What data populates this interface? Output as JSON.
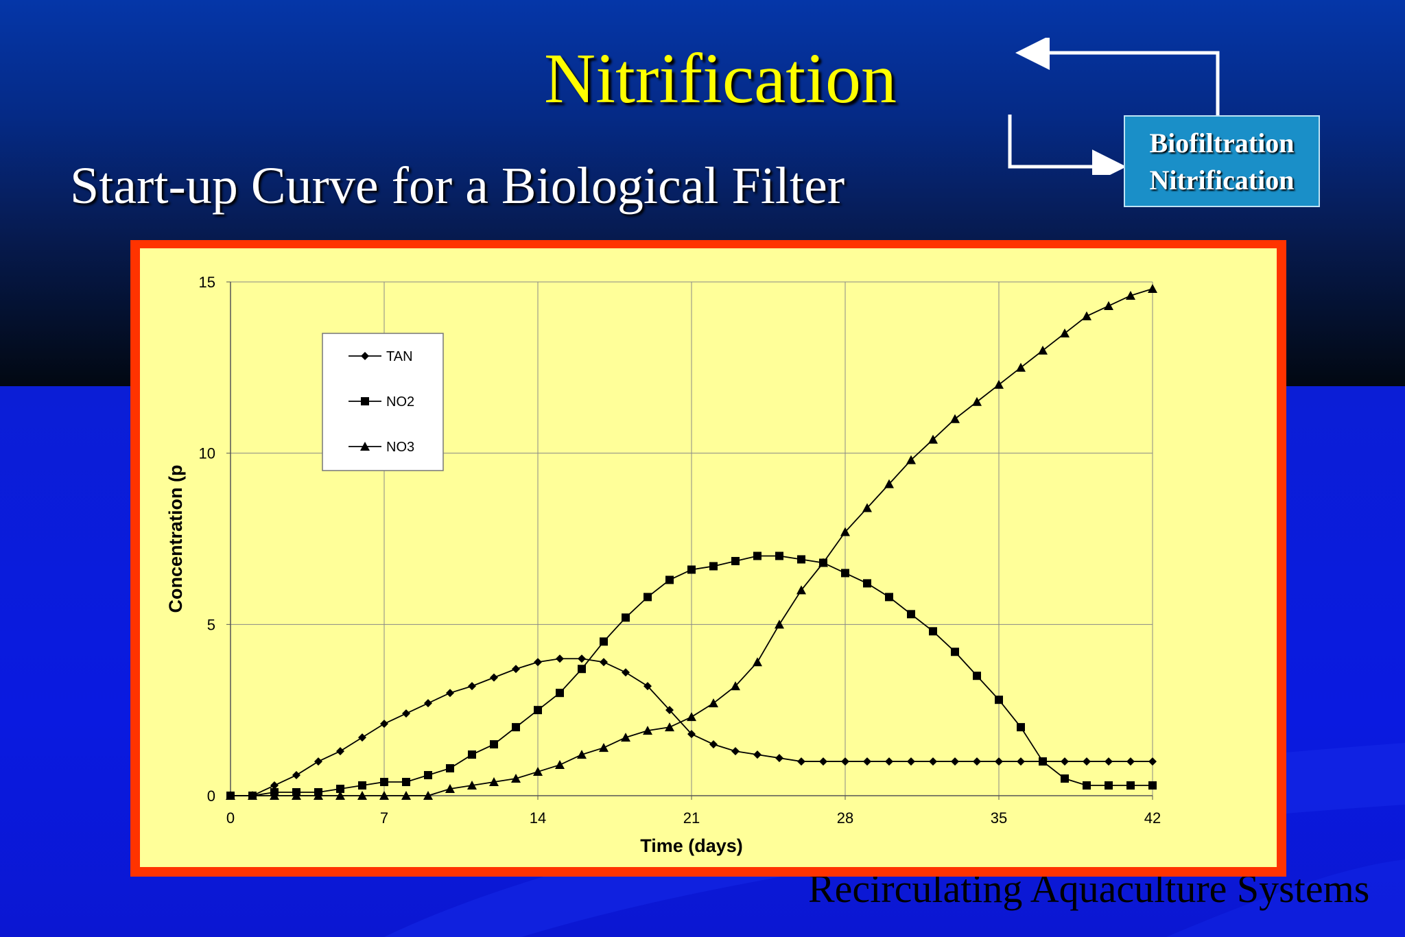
{
  "slide": {
    "title": "Nitrification",
    "subtitle": "Start-up Curve for a Biological Filter",
    "box_line1": "Biofiltration",
    "box_line2": "Nitrification",
    "footer": "Recirculating Aquaculture Systems"
  },
  "colors": {
    "title": "#ffff00",
    "frame": "#ff3300",
    "plot_bg": "#ffff99",
    "box": "#1a8fc8"
  },
  "chart_data": {
    "type": "line",
    "title": "",
    "xlabel": "Time (days)",
    "ylabel": "Concentration (p",
    "xlim": [
      0,
      42
    ],
    "ylim": [
      0,
      15
    ],
    "x_ticks": [
      0,
      7,
      14,
      21,
      28,
      35,
      42
    ],
    "y_ticks": [
      0,
      5,
      10,
      15
    ],
    "grid": true,
    "legend_position": "top-left",
    "x": [
      0,
      1,
      2,
      3,
      4,
      5,
      6,
      7,
      8,
      9,
      10,
      11,
      12,
      13,
      14,
      15,
      16,
      17,
      18,
      19,
      20,
      21,
      22,
      23,
      24,
      25,
      26,
      27,
      28,
      29,
      30,
      31,
      32,
      33,
      34,
      35,
      36,
      37,
      38,
      39,
      40,
      41,
      42
    ],
    "series": [
      {
        "name": "TAN",
        "marker": "diamond",
        "values": [
          0,
          0,
          0.3,
          0.6,
          1.0,
          1.3,
          1.7,
          2.1,
          2.4,
          2.7,
          3.0,
          3.2,
          3.45,
          3.7,
          3.9,
          4.0,
          4.0,
          3.9,
          3.6,
          3.2,
          2.5,
          1.8,
          1.5,
          1.3,
          1.2,
          1.1,
          1.0,
          1.0,
          1.0,
          1.0,
          1.0,
          1.0,
          1.0,
          1.0,
          1.0,
          1.0,
          1.0,
          1.0,
          1.0,
          1.0,
          1.0,
          1.0,
          1.0
        ]
      },
      {
        "name": "NO2",
        "marker": "square",
        "values": [
          0,
          0,
          0.1,
          0.1,
          0.1,
          0.2,
          0.3,
          0.4,
          0.4,
          0.6,
          0.8,
          1.2,
          1.5,
          2.0,
          2.5,
          3.0,
          3.7,
          4.5,
          5.2,
          5.8,
          6.3,
          6.6,
          6.7,
          6.85,
          7.0,
          7.0,
          6.9,
          6.8,
          6.5,
          6.2,
          5.8,
          5.3,
          4.8,
          4.2,
          3.5,
          2.8,
          2.0,
          1.0,
          0.5,
          0.3,
          0.3,
          0.3,
          0.3
        ]
      },
      {
        "name": "NO3",
        "marker": "triangle",
        "values": [
          0,
          0,
          0,
          0,
          0,
          0,
          0,
          0,
          0,
          0,
          0.2,
          0.3,
          0.4,
          0.5,
          0.7,
          0.9,
          1.2,
          1.4,
          1.7,
          1.9,
          2.0,
          2.3,
          2.7,
          3.2,
          3.9,
          5.0,
          6.0,
          6.8,
          7.7,
          8.4,
          9.1,
          9.8,
          10.4,
          11.0,
          11.5,
          12.0,
          12.5,
          13.0,
          13.5,
          14.0,
          14.3,
          14.6,
          14.8
        ]
      }
    ]
  }
}
